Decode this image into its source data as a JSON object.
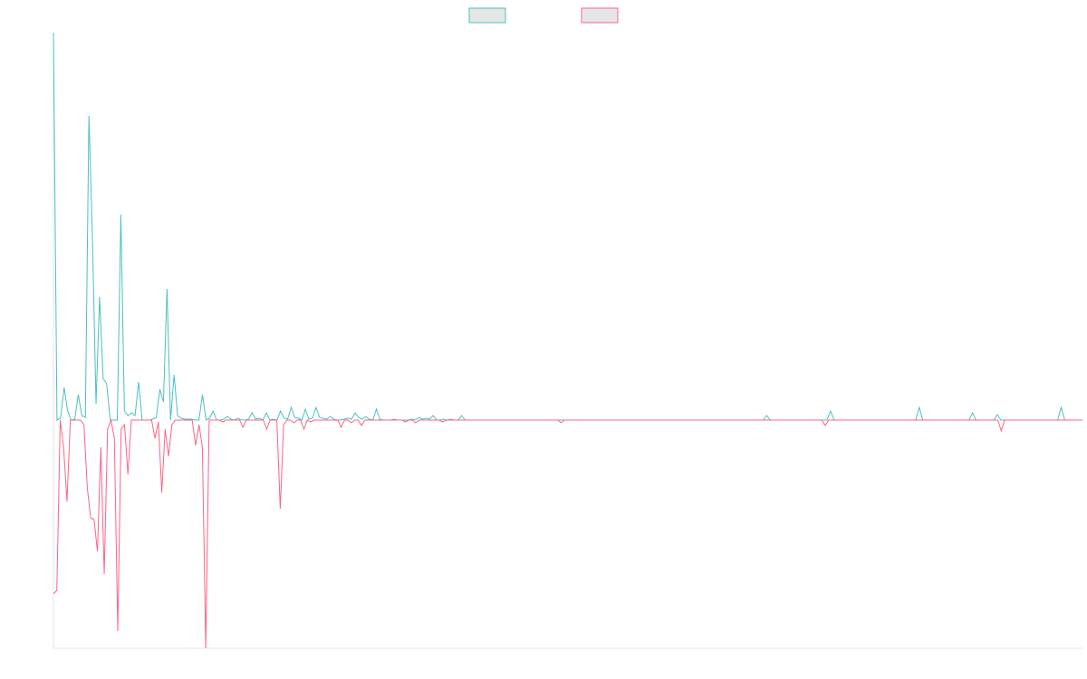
{
  "chart_data": {
    "type": "line",
    "ylim": [
      -252,
      428
    ],
    "legend": "top",
    "series": [
      {
        "color": "#4bc0c0",
        "values": [
          428,
          0,
          2,
          36,
          10,
          0,
          1,
          28,
          5,
          3,
          336,
          200,
          18,
          136,
          46,
          40,
          0,
          0,
          0,
          227,
          10,
          5,
          8,
          5,
          42,
          0,
          0,
          0,
          1,
          3,
          34,
          20,
          145,
          0,
          50,
          5,
          2,
          1,
          1,
          1,
          0,
          0,
          28,
          0,
          2,
          10,
          0,
          0,
          1,
          4,
          1,
          0,
          2,
          0,
          0,
          1,
          8,
          1,
          2,
          0,
          8,
          0,
          1,
          0,
          10,
          2,
          1,
          14,
          3,
          2,
          0,
          12,
          1,
          2,
          14,
          3,
          2,
          1,
          4,
          1,
          0,
          0,
          1,
          2,
          1,
          8,
          3,
          1,
          4,
          1,
          0,
          12,
          1,
          0,
          0,
          0,
          1,
          0,
          0,
          0,
          0,
          1,
          0,
          3,
          1,
          2,
          1,
          5,
          0,
          0,
          1,
          0,
          1,
          0,
          0,
          5,
          0,
          0,
          0,
          0,
          0,
          0,
          0,
          0,
          0,
          0,
          0,
          0,
          0,
          0,
          0,
          0,
          0,
          0,
          0,
          0,
          0,
          0,
          0,
          0,
          0,
          0,
          0,
          0,
          0,
          0,
          0,
          0,
          0,
          0,
          0,
          0,
          0,
          0,
          0,
          0,
          0,
          0,
          0,
          0,
          0,
          0,
          0,
          0,
          0,
          0,
          0,
          0,
          0,
          0,
          0,
          0,
          0,
          0,
          0,
          0,
          0,
          0,
          0,
          0,
          0,
          0,
          0,
          0,
          0,
          0,
          0,
          0,
          0,
          0,
          0,
          0,
          0,
          0,
          0,
          0,
          0,
          0,
          0,
          0,
          0,
          5,
          0,
          0,
          0,
          0,
          0,
          0,
          0,
          0,
          0,
          0,
          0,
          0,
          0,
          0,
          0,
          0,
          0,
          10,
          0,
          0,
          0,
          0,
          0,
          0,
          0,
          0,
          0,
          0,
          0,
          0,
          0,
          0,
          0,
          0,
          0,
          0,
          0,
          0,
          0,
          0,
          0,
          0,
          14,
          0,
          0,
          0,
          0,
          0,
          0,
          0,
          0,
          0,
          0,
          0,
          0,
          0,
          0,
          8,
          0,
          0,
          0,
          0,
          0,
          0,
          6,
          0,
          0,
          0,
          0,
          0,
          0,
          0,
          0,
          0,
          0,
          0,
          0,
          0,
          0,
          0,
          0,
          0,
          14,
          0,
          0,
          0,
          0,
          0,
          0
        ]
      },
      {
        "color": "#ff6384",
        "values": [
          -192,
          -188,
          0,
          -30,
          -90,
          0,
          0,
          0,
          0,
          -5,
          -75,
          -108,
          -110,
          -145,
          -30,
          -170,
          -10,
          0,
          -20,
          -233,
          -10,
          -5,
          -60,
          0,
          0,
          0,
          0,
          0,
          0,
          0,
          -20,
          -2,
          -80,
          -10,
          -40,
          -5,
          0,
          0,
          0,
          0,
          0,
          0,
          -28,
          -5,
          -30,
          -252,
          0,
          0,
          0,
          0,
          -2,
          0,
          0,
          0,
          0,
          0,
          -8,
          0,
          0,
          0,
          0,
          0,
          0,
          -10,
          0,
          0,
          0,
          -98,
          -5,
          0,
          0,
          -3,
          0,
          0,
          -10,
          0,
          -2,
          0,
          0,
          0,
          0,
          0,
          0,
          0,
          0,
          -8,
          0,
          0,
          -3,
          0,
          0,
          -6,
          0,
          0,
          0,
          0,
          0,
          0,
          0,
          0,
          0,
          0,
          0,
          0,
          -2,
          0,
          0,
          -3,
          0,
          0,
          0,
          0,
          0,
          0,
          0,
          -2,
          0,
          0,
          0,
          0,
          0,
          0,
          0,
          0,
          0,
          0,
          0,
          0,
          0,
          0,
          0,
          0,
          0,
          0,
          0,
          0,
          0,
          0,
          0,
          0,
          0,
          0,
          0,
          0,
          0,
          0,
          0,
          0,
          0,
          0,
          -3,
          0,
          0,
          0,
          0,
          0,
          0,
          0,
          0,
          0,
          0,
          0,
          0,
          0,
          0,
          0,
          0,
          0,
          0,
          0,
          0,
          0,
          0,
          0,
          0,
          0,
          0,
          0,
          0,
          0,
          0,
          0,
          0,
          0,
          0,
          0,
          0,
          0,
          0,
          0,
          0,
          0,
          0,
          0,
          0,
          0,
          0,
          0,
          0,
          0,
          0,
          0,
          0,
          0,
          0,
          0,
          0,
          0,
          0,
          0,
          0,
          0,
          0,
          0,
          0,
          0,
          0,
          0,
          0,
          0,
          0,
          0,
          0,
          0,
          0,
          0,
          0,
          0,
          -6,
          0,
          0,
          0,
          0,
          0,
          0,
          0,
          0,
          0,
          0,
          0,
          0,
          0,
          0,
          0,
          0,
          0,
          0,
          0,
          0,
          0,
          0,
          0,
          0,
          0,
          0,
          0,
          0,
          0,
          0,
          0,
          0,
          0,
          0,
          0,
          0,
          0,
          0,
          0,
          0,
          0,
          0,
          0,
          0,
          0,
          0,
          0,
          0,
          0,
          0,
          0,
          -12,
          0,
          0,
          0,
          0,
          0,
          0,
          0,
          0,
          0,
          0,
          0,
          0,
          0,
          0,
          0,
          0,
          0,
          0,
          0,
          0,
          0,
          0,
          0,
          0
        ]
      }
    ]
  }
}
